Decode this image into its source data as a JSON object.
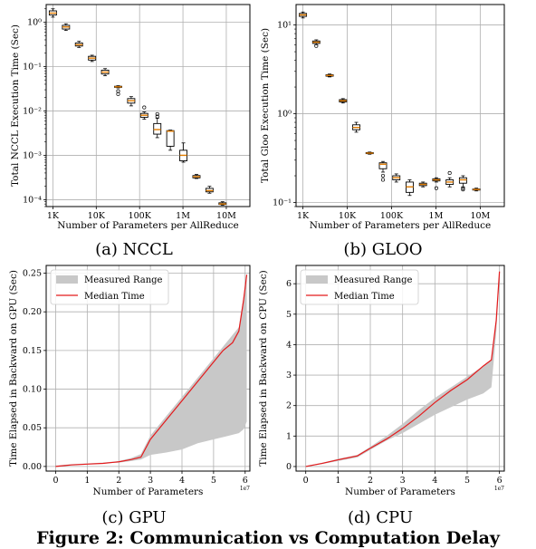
{
  "figure_caption": "Figure 2: Communication vs Computation Delay",
  "colors": {
    "box_median": "#e07b00",
    "line": "#e41a1c",
    "band": "#c8c8c8",
    "grid": "#b0b0b0"
  },
  "chart_data": [
    {
      "id": "a",
      "type": "box",
      "subtitle": "(a) NCCL",
      "xlabel": "Number of Parameters per AllReduce",
      "ylabel": "Total NCCL Execution Time (Sec)",
      "yscale": "log",
      "xscale": "log",
      "ylim": [
        7e-05,
        2.5
      ],
      "xlim": [
        700,
        35000000
      ],
      "yticks": [
        {
          "v": 1,
          "label": "10⁰"
        },
        {
          "v": 0.1,
          "label": "10⁻¹"
        },
        {
          "v": 0.01,
          "label": "10⁻²"
        },
        {
          "v": 0.001,
          "label": "10⁻³"
        },
        {
          "v": 0.0001,
          "label": "10⁻⁴"
        }
      ],
      "xticks": [
        {
          "v": 1000,
          "label": "1K"
        },
        {
          "v": 10000,
          "label": "10K"
        },
        {
          "v": 100000,
          "label": "100K"
        },
        {
          "v": 1000000,
          "label": "1M"
        },
        {
          "v": 10000000,
          "label": "10M"
        }
      ],
      "boxes": [
        {
          "x": 1000,
          "wlo": 1.3,
          "q1": 1.45,
          "med": 1.6,
          "q3": 1.8,
          "whi": 2.0,
          "fl": []
        },
        {
          "x": 2000,
          "wlo": 0.65,
          "q1": 0.7,
          "med": 0.78,
          "q3": 0.85,
          "whi": 0.92,
          "fl": []
        },
        {
          "x": 4000,
          "wlo": 0.27,
          "q1": 0.29,
          "med": 0.31,
          "q3": 0.34,
          "whi": 0.37,
          "fl": []
        },
        {
          "x": 8000,
          "wlo": 0.13,
          "q1": 0.14,
          "med": 0.155,
          "q3": 0.17,
          "whi": 0.18,
          "fl": []
        },
        {
          "x": 16000,
          "wlo": 0.062,
          "q1": 0.068,
          "med": 0.075,
          "q3": 0.083,
          "whi": 0.09,
          "fl": []
        },
        {
          "x": 32000,
          "wlo": 0.033,
          "q1": 0.034,
          "med": 0.035,
          "q3": 0.036,
          "whi": 0.037,
          "fl": [
            0.028,
            0.024
          ]
        },
        {
          "x": 64000,
          "wlo": 0.013,
          "q1": 0.015,
          "med": 0.017,
          "q3": 0.019,
          "whi": 0.021,
          "fl": []
        },
        {
          "x": 128000,
          "wlo": 0.0065,
          "q1": 0.0072,
          "med": 0.008,
          "q3": 0.0088,
          "whi": 0.0095,
          "fl": [
            0.012
          ]
        },
        {
          "x": 256000,
          "wlo": 0.0025,
          "q1": 0.003,
          "med": 0.0038,
          "q3": 0.0052,
          "whi": 0.0068,
          "fl": [
            0.0085,
            0.0075
          ]
        },
        {
          "x": 512000,
          "wlo": 0.0013,
          "q1": 0.0016,
          "med": 0.0035,
          "q3": 0.0036,
          "whi": 0.0037,
          "fl": []
        },
        {
          "x": 1024000,
          "wlo": 0.0007,
          "q1": 0.00075,
          "med": 0.001,
          "q3": 0.0013,
          "whi": 0.0019,
          "fl": []
        },
        {
          "x": 2048000,
          "wlo": 0.0003,
          "q1": 0.00031,
          "med": 0.00033,
          "q3": 0.00035,
          "whi": 0.00037,
          "fl": []
        },
        {
          "x": 4096000,
          "wlo": 0.00014,
          "q1": 0.00015,
          "med": 0.00016,
          "q3": 0.00018,
          "whi": 0.0002,
          "fl": []
        },
        {
          "x": 8192000,
          "wlo": 7.5e-05,
          "q1": 7.8e-05,
          "med": 8e-05,
          "q3": 8.5e-05,
          "whi": 9e-05,
          "fl": []
        }
      ]
    },
    {
      "id": "b",
      "type": "box",
      "subtitle": "(b) GLOO",
      "xlabel": "Number of Parameters per AllReduce",
      "ylabel": "Total Gloo Execution Time (Sec)",
      "yscale": "log",
      "xscale": "log",
      "ylim": [
        0.09,
        17
      ],
      "xlim": [
        700,
        35000000
      ],
      "yticks": [
        {
          "v": 10,
          "label": "10¹"
        },
        {
          "v": 1,
          "label": "10⁰"
        },
        {
          "v": 0.1,
          "label": "10⁻¹"
        }
      ],
      "xticks": [
        {
          "v": 1000,
          "label": "1K"
        },
        {
          "v": 10000,
          "label": "10K"
        },
        {
          "v": 100000,
          "label": "100K"
        },
        {
          "v": 1000000,
          "label": "1M"
        },
        {
          "v": 10000000,
          "label": "10M"
        }
      ],
      "boxes": [
        {
          "x": 1000,
          "wlo": 12,
          "q1": 12.5,
          "med": 13,
          "q3": 13.5,
          "whi": 14,
          "fl": []
        },
        {
          "x": 2000,
          "wlo": 6.0,
          "q1": 6.2,
          "med": 6.4,
          "q3": 6.6,
          "whi": 6.8,
          "fl": [
            5.8
          ]
        },
        {
          "x": 4000,
          "wlo": 2.6,
          "q1": 2.65,
          "med": 2.7,
          "q3": 2.75,
          "whi": 2.8,
          "fl": []
        },
        {
          "x": 8000,
          "wlo": 1.32,
          "q1": 1.36,
          "med": 1.4,
          "q3": 1.44,
          "whi": 1.48,
          "fl": []
        },
        {
          "x": 16000,
          "wlo": 0.62,
          "q1": 0.66,
          "med": 0.7,
          "q3": 0.75,
          "whi": 0.8,
          "fl": []
        },
        {
          "x": 32000,
          "wlo": 0.35,
          "q1": 0.355,
          "med": 0.36,
          "q3": 0.365,
          "whi": 0.37,
          "fl": []
        },
        {
          "x": 64000,
          "wlo": 0.22,
          "q1": 0.24,
          "med": 0.27,
          "q3": 0.28,
          "whi": 0.29,
          "fl": [
            0.2,
            0.18
          ]
        },
        {
          "x": 128000,
          "wlo": 0.17,
          "q1": 0.18,
          "med": 0.19,
          "q3": 0.2,
          "whi": 0.21,
          "fl": []
        },
        {
          "x": 256000,
          "wlo": 0.12,
          "q1": 0.13,
          "med": 0.15,
          "q3": 0.17,
          "whi": 0.18,
          "fl": []
        },
        {
          "x": 512000,
          "wlo": 0.15,
          "q1": 0.155,
          "med": 0.16,
          "q3": 0.165,
          "whi": 0.17,
          "fl": []
        },
        {
          "x": 1024000,
          "wlo": 0.17,
          "q1": 0.175,
          "med": 0.18,
          "q3": 0.185,
          "whi": 0.19,
          "fl": [
            0.145
          ]
        },
        {
          "x": 2048000,
          "wlo": 0.15,
          "q1": 0.16,
          "med": 0.17,
          "q3": 0.18,
          "whi": 0.19,
          "fl": [
            0.215
          ]
        },
        {
          "x": 4096000,
          "wlo": 0.15,
          "q1": 0.165,
          "med": 0.18,
          "q3": 0.19,
          "whi": 0.2,
          "fl": [
            0.145,
            0.14
          ]
        },
        {
          "x": 8192000,
          "wlo": 0.135,
          "q1": 0.138,
          "med": 0.14,
          "q3": 0.142,
          "whi": 0.145,
          "fl": []
        }
      ]
    },
    {
      "id": "c",
      "type": "area",
      "subtitle": "(c) GPU",
      "xlabel": "Number of Parameters",
      "ylabel": "Time Elapsed in Backward on GPU (Sec)",
      "x_multiplier": "1e7",
      "xlim": [
        -0.3,
        6.15
      ],
      "ylim": [
        -0.006,
        0.26
      ],
      "xticks": [
        0,
        1,
        2,
        3,
        4,
        5,
        6
      ],
      "yticks": [
        {
          "v": 0,
          "label": "0.00"
        },
        {
          "v": 0.05,
          "label": "0.05"
        },
        {
          "v": 0.1,
          "label": "0.10"
        },
        {
          "v": 0.15,
          "label": "0.15"
        },
        {
          "v": 0.2,
          "label": "0.20"
        },
        {
          "v": 0.25,
          "label": "0.25"
        }
      ],
      "legend": [
        "Measured Range",
        "Median Time"
      ],
      "legend_loc": "upper-left",
      "series": [
        {
          "name": "Median Time",
          "x": [
            0,
            0.5,
            1.0,
            1.5,
            2.0,
            2.4,
            2.7,
            3.0,
            3.5,
            4.0,
            4.5,
            5.0,
            5.3,
            5.6,
            5.8,
            5.95,
            6.05
          ],
          "y": [
            0.0,
            0.002,
            0.003,
            0.004,
            0.006,
            0.009,
            0.012,
            0.035,
            0.06,
            0.085,
            0.11,
            0.135,
            0.15,
            0.16,
            0.175,
            0.215,
            0.248
          ]
        }
      ],
      "band": {
        "x": [
          0,
          0.5,
          1.0,
          1.5,
          2.0,
          2.4,
          2.7,
          3.0,
          3.5,
          4.0,
          4.5,
          5.0,
          5.3,
          5.6,
          5.8,
          5.95,
          6.05
        ],
        "lo": [
          0.0,
          0.002,
          0.003,
          0.004,
          0.005,
          0.007,
          0.009,
          0.015,
          0.018,
          0.022,
          0.03,
          0.035,
          0.038,
          0.041,
          0.043,
          0.048,
          0.058
        ],
        "hi": [
          0.001,
          0.003,
          0.004,
          0.005,
          0.007,
          0.011,
          0.016,
          0.04,
          0.065,
          0.09,
          0.115,
          0.14,
          0.155,
          0.17,
          0.18,
          0.22,
          0.25
        ]
      }
    },
    {
      "id": "d",
      "type": "area",
      "subtitle": "(d) CPU",
      "xlabel": "Number of Parameters",
      "ylabel": "Time Elapsed in Backward on CPU (Sec)",
      "x_multiplier": "1e7",
      "xlim": [
        -0.3,
        6.15
      ],
      "ylim": [
        -0.15,
        6.6
      ],
      "xticks": [
        0,
        1,
        2,
        3,
        4,
        5,
        6
      ],
      "yticks": [
        {
          "v": 0,
          "label": "0"
        },
        {
          "v": 1,
          "label": "1"
        },
        {
          "v": 2,
          "label": "2"
        },
        {
          "v": 3,
          "label": "3"
        },
        {
          "v": 4,
          "label": "4"
        },
        {
          "v": 5,
          "label": "5"
        },
        {
          "v": 6,
          "label": "6"
        }
      ],
      "legend": [
        "Measured Range",
        "Median Time"
      ],
      "legend_loc": "upper-left",
      "series": [
        {
          "name": "Median Time",
          "x": [
            0,
            0.5,
            1.0,
            1.6,
            2.0,
            2.5,
            3.0,
            3.5,
            4.0,
            4.5,
            5.0,
            5.5,
            5.75,
            5.9,
            6.0
          ],
          "y": [
            0.0,
            0.1,
            0.22,
            0.35,
            0.6,
            0.9,
            1.25,
            1.65,
            2.1,
            2.5,
            2.85,
            3.3,
            3.5,
            4.8,
            6.4
          ]
        }
      ],
      "band": {
        "x": [
          0,
          0.5,
          1.0,
          1.6,
          2.0,
          2.5,
          3.0,
          3.5,
          4.0,
          4.5,
          5.0,
          5.5,
          5.75,
          5.9,
          6.0
        ],
        "lo": [
          0.0,
          0.08,
          0.18,
          0.3,
          0.55,
          0.85,
          1.1,
          1.4,
          1.7,
          1.95,
          2.2,
          2.4,
          2.6,
          4.4,
          6.2
        ],
        "hi": [
          0.02,
          0.12,
          0.25,
          0.38,
          0.65,
          1.0,
          1.4,
          1.85,
          2.25,
          2.6,
          2.95,
          3.3,
          3.5,
          4.9,
          6.45
        ]
      }
    }
  ]
}
